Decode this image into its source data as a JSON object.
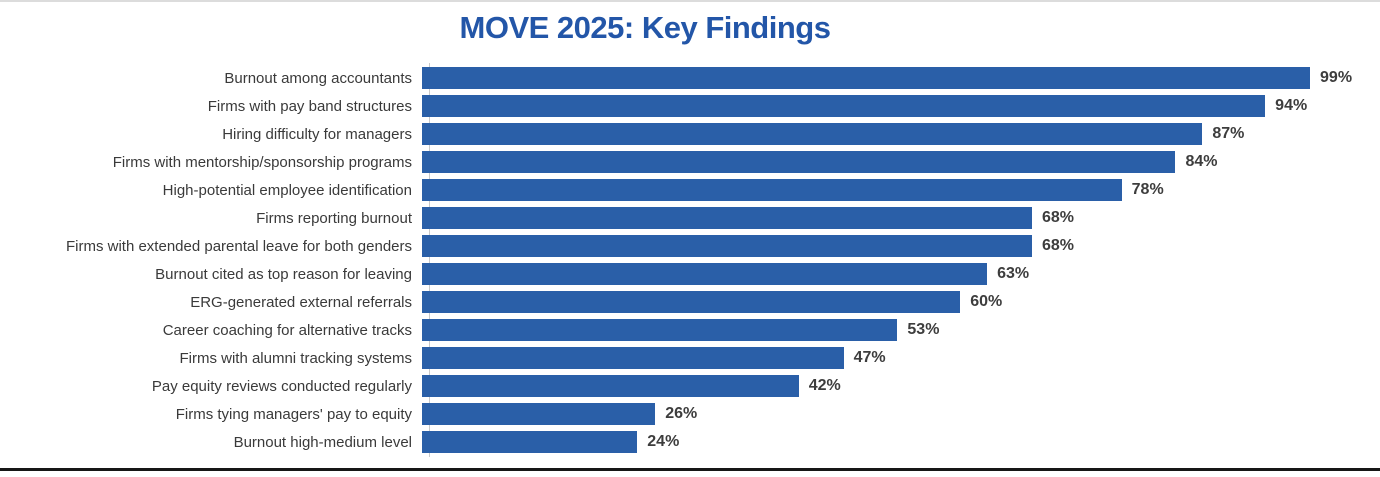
{
  "page": {
    "title": "MOVE 2025: Key Findings"
  },
  "chart_data": {
    "type": "bar",
    "orientation": "horizontal",
    "title": "MOVE 2025: Key Findings",
    "categories": [
      "Burnout among accountants",
      "Firms with pay band structures",
      "Hiring difficulty for managers",
      "Firms with mentorship/sponsorship programs",
      "High-potential employee identification",
      "Firms reporting burnout",
      "Firms with extended parental leave for both genders",
      "Burnout cited as top reason for leaving",
      "ERG-generated external referrals",
      "Career coaching for alternative tracks",
      "Firms with alumni tracking systems",
      "Pay equity reviews conducted regularly",
      "Firms tying managers' pay to equity",
      "Burnout high-medium level"
    ],
    "values": [
      99,
      94,
      87,
      84,
      78,
      68,
      68,
      63,
      60,
      53,
      47,
      42,
      26,
      24
    ],
    "value_suffix": "%",
    "xlim": [
      0,
      100
    ],
    "grid": false,
    "legend": false,
    "bar_color": "#2a5fa8",
    "title_color": "#2356a8",
    "category_label_color": "#3a3a3a",
    "value_label_color": "#3d3d3d",
    "top_border_color": "#dcdcdc",
    "bottom_border_color": "#161616"
  }
}
